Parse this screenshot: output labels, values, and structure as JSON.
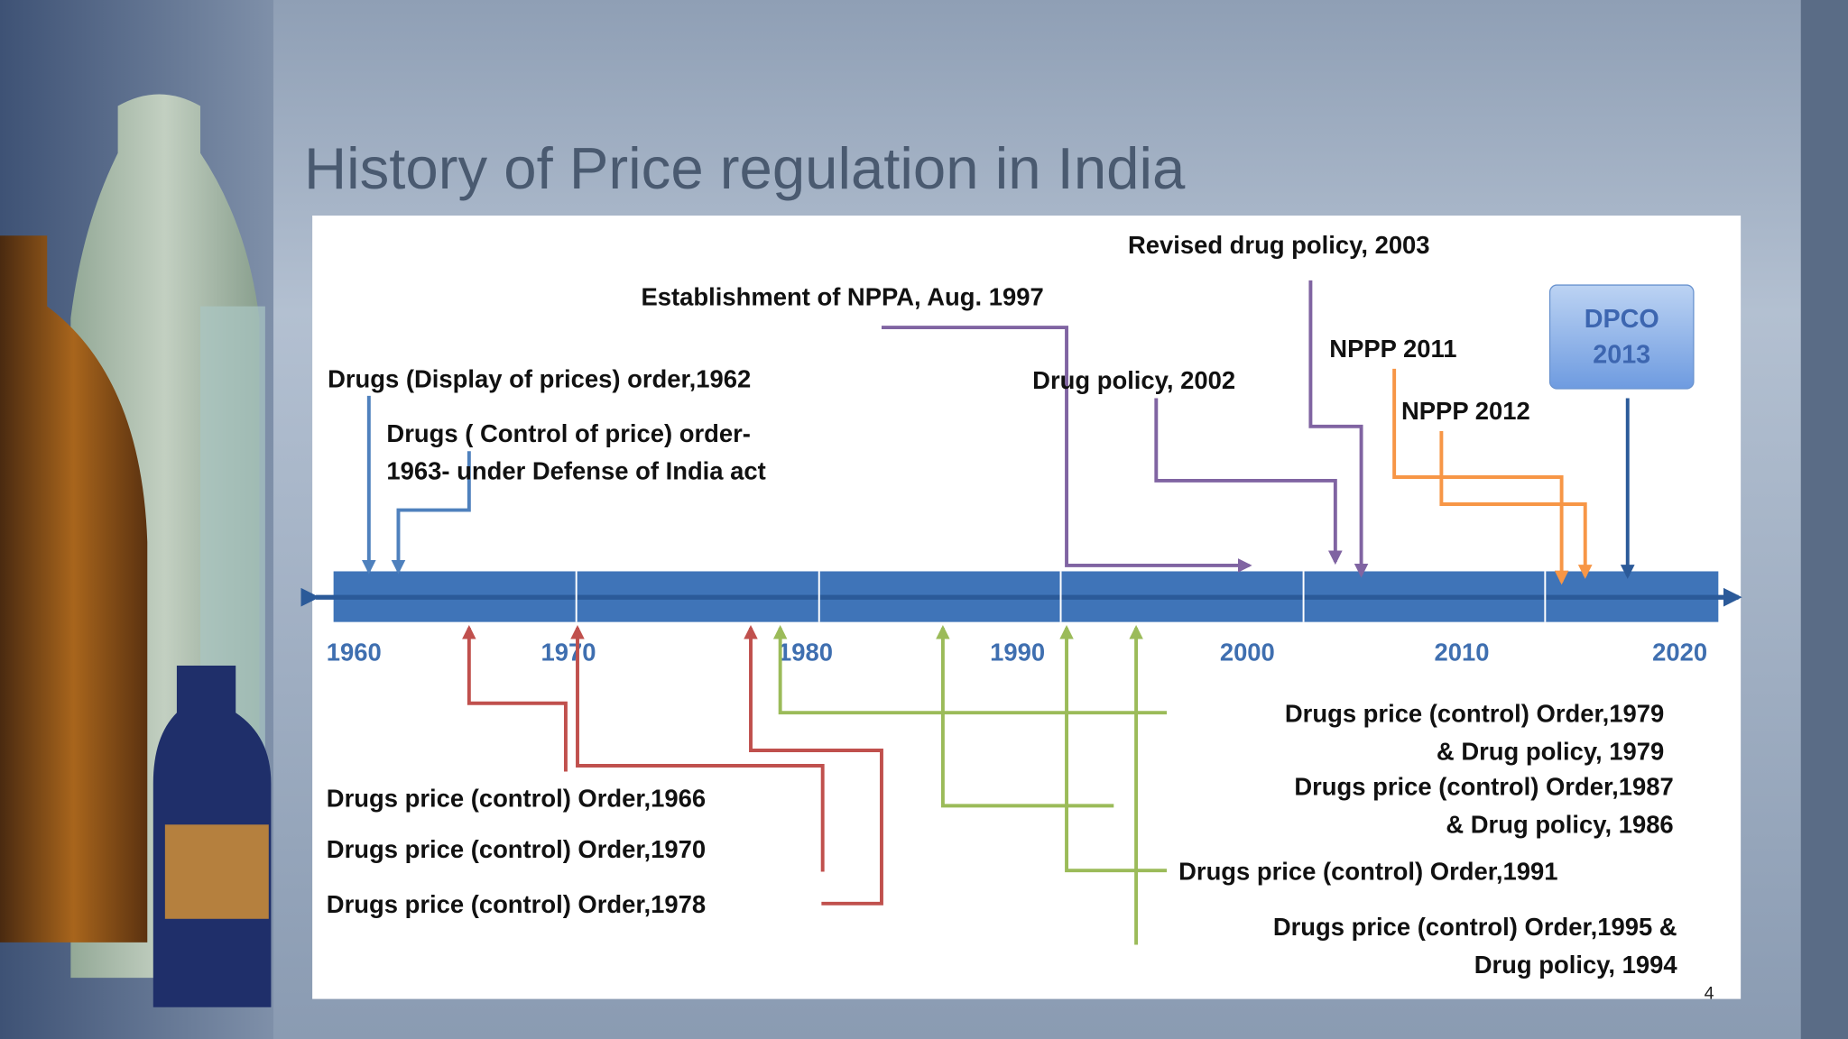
{
  "title": "History of Price regulation in India",
  "page_number": "4",
  "dpco_badge": {
    "line1": "DPCO",
    "line2": "2013"
  },
  "axis_labels": [
    "1960",
    "1970",
    "1980",
    "1990",
    "2000",
    "2010",
    "2020"
  ],
  "events_above": [
    {
      "lines": [
        "Drugs (Display of prices) order,1962"
      ]
    },
    {
      "lines": [
        "Drugs ( Control of price) order-",
        "1963- under Defense of India act"
      ]
    },
    {
      "lines": [
        "Establishment of NPPA, Aug. 1997"
      ]
    },
    {
      "lines": [
        "Drug policy, 2002"
      ]
    },
    {
      "lines": [
        "Revised drug policy, 2003"
      ]
    },
    {
      "lines": [
        "NPPP 2011"
      ]
    },
    {
      "lines": [
        "NPPP 2012"
      ]
    }
  ],
  "events_below": [
    {
      "lines": [
        "Drugs price (control) Order,1966"
      ]
    },
    {
      "lines": [
        "Drugs price (control) Order,1970"
      ]
    },
    {
      "lines": [
        "Drugs price (control) Order,1978"
      ]
    },
    {
      "lines": [
        "Drugs price (control) Order,1979",
        "& Drug policy, 1979"
      ]
    },
    {
      "lines": [
        "Drugs price (control) Order,1987",
        "& Drug policy, 1986"
      ]
    },
    {
      "lines": [
        "Drugs price (control) Order,1991"
      ]
    },
    {
      "lines": [
        "Drugs price (control) Order,1995 &",
        "Drug policy, 1994"
      ]
    }
  ]
}
